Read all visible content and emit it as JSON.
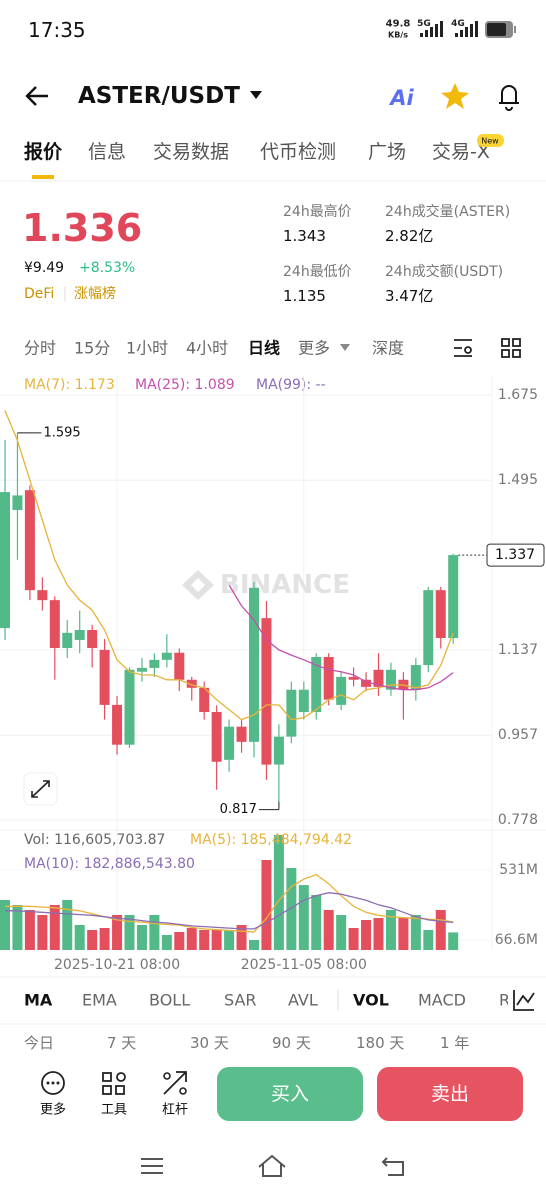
{
  "status_bar": {
    "time": "17:35",
    "speed": "49.8",
    "speed_unit": "KB/s",
    "net1": "5G",
    "net2": "4G"
  },
  "header": {
    "pair": "ASTER/USDT",
    "ai": "Ai"
  },
  "tabs": [
    "报价",
    "信息",
    "交易数据",
    "代币检测",
    "广场",
    "交易-X"
  ],
  "tab_badge": "New",
  "ticker": {
    "price": "1.336",
    "cny": "¥9.49",
    "change": "+8.53%",
    "tags": [
      "DeFi",
      "涨幅榜"
    ],
    "stats": [
      {
        "label": "24h最高价",
        "value": "1.343"
      },
      {
        "label": "24h成交量(ASTER)",
        "value": "2.82亿"
      },
      {
        "label": "24h最低价",
        "value": "1.135"
      },
      {
        "label": "24h成交额(USDT)",
        "value": "3.47亿"
      }
    ]
  },
  "intervals": [
    "分时",
    "15分",
    "1小时",
    "4小时",
    "日线",
    "更多",
    "深度"
  ],
  "chart": {
    "type": "candlestick",
    "legend": [
      {
        "label": "MA(7): 1.173",
        "color": "#e8b33a"
      },
      {
        "label": "MA(25): 1.089",
        "color": "#c64fae"
      },
      {
        "label": "MA(99): --",
        "color": "#8a6db4"
      }
    ],
    "watermark": "BINANCE",
    "up_color": "#54b989",
    "down_color": "#e44f5e",
    "categories": [
      null,
      null,
      null,
      null,
      null,
      null,
      null,
      null,
      null,
      "2025-10-21 08:00",
      null,
      null,
      null,
      null,
      null,
      null,
      null,
      null,
      null,
      null,
      null,
      null,
      null,
      null,
      "2025-11-05 08:00",
      null,
      null,
      null,
      null,
      null,
      null,
      null,
      null,
      null,
      null,
      null,
      null
    ],
    "open": [
      1.183,
      1.432,
      1.474,
      1.263,
      1.242,
      1.141,
      1.158,
      1.179,
      1.137,
      1.021,
      0.937,
      1.091,
      1.099,
      1.116,
      1.131,
      1.074,
      1.057,
      1.006,
      0.905,
      0.975,
      0.943,
      1.204,
      0.895,
      0.954,
      1.006,
      1.006,
      1.122,
      1.021,
      1.08,
      1.074,
      1.095,
      1.053,
      1.074,
      1.053,
      1.105,
      1.263,
      1.162
    ],
    "high": [
      1.58,
      1.595,
      1.484,
      1.29,
      1.25,
      1.2,
      1.22,
      1.19,
      1.16,
      1.04,
      1.1,
      1.12,
      1.13,
      1.17,
      1.14,
      1.08,
      1.07,
      1.02,
      0.99,
      0.99,
      1.28,
      1.24,
      0.98,
      1.07,
      1.07,
      1.13,
      1.13,
      1.09,
      1.1,
      1.09,
      1.13,
      1.11,
      1.09,
      1.12,
      1.27,
      1.27,
      1.34
    ],
    "low": [
      1.158,
      1.327,
      1.242,
      1.22,
      1.074,
      1.12,
      1.13,
      1.1,
      0.99,
      0.916,
      0.93,
      1.07,
      1.08,
      1.1,
      1.05,
      1.03,
      0.99,
      0.842,
      0.88,
      0.92,
      0.91,
      0.863,
      0.817,
      0.94,
      0.99,
      0.99,
      1.02,
      1.01,
      1.06,
      1.05,
      1.04,
      1.04,
      0.99,
      1.03,
      1.09,
      1.14,
      1.15
    ],
    "close": [
      1.47,
      1.463,
      1.263,
      1.242,
      1.141,
      1.173,
      1.179,
      1.141,
      1.021,
      0.937,
      1.095,
      1.099,
      1.116,
      1.131,
      1.074,
      1.057,
      1.006,
      0.901,
      0.975,
      0.943,
      1.268,
      0.895,
      0.954,
      1.053,
      1.053,
      1.122,
      1.032,
      1.08,
      1.074,
      1.059,
      1.059,
      1.095,
      1.053,
      1.105,
      1.263,
      1.162,
      1.337
    ],
    "ma": [
      {
        "color": "#e8b33a",
        "values": [
          1.642,
          1.579,
          1.495,
          1.411,
          1.327,
          1.274,
          1.242,
          1.221,
          1.179,
          1.116,
          1.091,
          1.084,
          1.084,
          1.074,
          1.074,
          1.063,
          1.057,
          1.032,
          1.011,
          0.99,
          1.0,
          1.021,
          1.021,
          0.99,
          0.994,
          1.011,
          1.032,
          1.042,
          1.032,
          1.053,
          1.057,
          1.063,
          1.063,
          1.057,
          1.063,
          1.105,
          1.173
        ]
      },
      {
        "color": "#c64fae",
        "values": [
          null,
          null,
          null,
          null,
          null,
          null,
          null,
          null,
          null,
          null,
          null,
          null,
          null,
          null,
          null,
          null,
          null,
          null,
          1.274,
          1.23,
          1.2,
          1.158,
          1.137,
          1.126,
          1.116,
          1.105,
          1.095,
          1.091,
          1.084,
          1.07,
          1.063,
          1.057,
          1.053,
          1.053,
          1.057,
          1.07,
          1.089
        ]
      }
    ],
    "ylim": [
      0.757,
      1.717
    ],
    "yticks": [
      1.675,
      1.495,
      1.137,
      0.957,
      0.778
    ],
    "grid": true
  },
  "volume": {
    "label": "Vol: 116,605,703.87",
    "legend": [
      {
        "label": "MA(5): 185,484,794.42",
        "color": "#e8b33a"
      },
      {
        "label": "MA(10): 182,886,543.80",
        "color": "#8a6db4"
      }
    ],
    "values": [
      331.7,
      298.5,
      265.4,
      232.2,
      298.5,
      331.7,
      165.9,
      132.7,
      145.9,
      232.2,
      232.2,
      165.9,
      232.2,
      99.5,
      119.4,
      145.9,
      132.7,
      132.7,
      132.7,
      165.9,
      66.3,
      597,
      763,
      544,
      431,
      365,
      265.4,
      232.2,
      145.9,
      199,
      212,
      265.4,
      212,
      232.2,
      132.7,
      265.4,
      116.6
    ],
    "ma": [
      {
        "color": "#e8b33a",
        "values": [
          290,
          290,
          290,
          285,
          280,
          270,
          260,
          240,
          220,
          200,
          190,
          185,
          175,
          170,
          165,
          150,
          140,
          135,
          130,
          125,
          120,
          210,
          330,
          420,
          470,
          500,
          440,
          360,
          290,
          250,
          230,
          220,
          215,
          210,
          205,
          200,
          185.48
        ]
      },
      {
        "color": "#8a6db4",
        "values": [
          260,
          260,
          255,
          250,
          245,
          240,
          235,
          230,
          220,
          210,
          205,
          195,
          185,
          180,
          170,
          160,
          155,
          150,
          145,
          140,
          140,
          180,
          230,
          280,
          330,
          360,
          380,
          370,
          350,
          330,
          300,
          280,
          250,
          220,
          200,
          190,
          182.89
        ]
      }
    ],
    "ylim": [
      0,
      763
    ],
    "yticks": [
      {
        "value": 531,
        "label": "531M"
      },
      {
        "value": 66.6,
        "label": "66.6M"
      }
    ]
  },
  "indicators": [
    "MA",
    "EMA",
    "BOLL",
    "SAR",
    "AVL",
    "VOL",
    "MACD",
    "R"
  ],
  "periods": [
    "今日",
    "7 天",
    "30 天",
    "90 天",
    "180 天",
    "1 年"
  ],
  "tools": [
    "更多",
    "工具",
    "杠杆"
  ],
  "buttons": [
    "买入",
    "卖出"
  ]
}
